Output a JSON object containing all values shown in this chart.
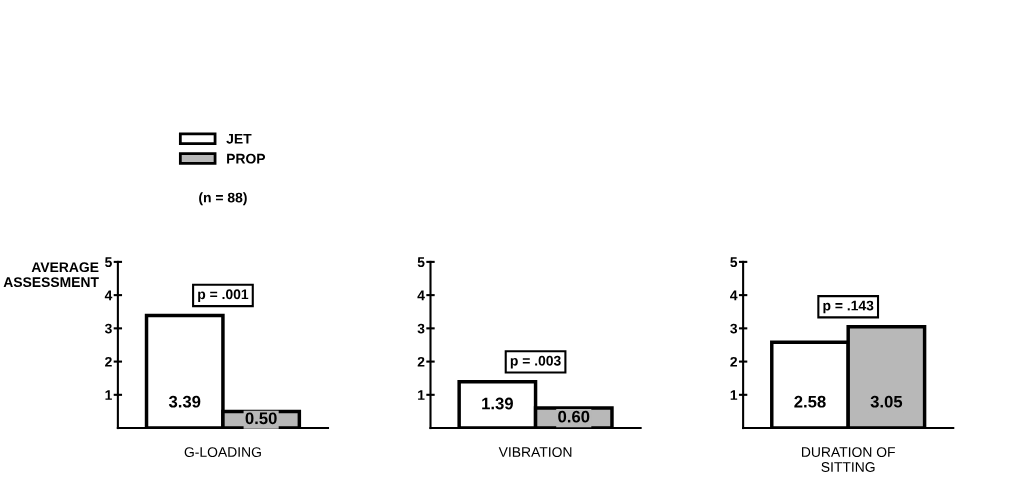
{
  "chart_data": [
    {
      "type": "bar",
      "categories": [
        null
      ],
      "xlabel": "G-LOADING",
      "ylabel": "AVERAGE\nASSESSMENT",
      "subtitle": "(n = 88)",
      "legend": "top",
      "ylim": [
        0,
        5
      ],
      "yticks": [
        1,
        2,
        3,
        4,
        5
      ],
      "grid": false,
      "annotations": [
        "p = .001"
      ],
      "series": [
        {
          "name": "JET",
          "color": "#ffffff",
          "values": [
            3.39
          ],
          "value_labels": [
            "3.39"
          ]
        },
        {
          "name": "PROP",
          "color": "#b8b8b8",
          "values": [
            0.5
          ],
          "value_labels": [
            "0.50"
          ]
        }
      ]
    },
    {
      "type": "bar",
      "categories": [
        null
      ],
      "xlabel": "VIBRATION",
      "ylim": [
        0,
        5
      ],
      "yticks": [
        1,
        2,
        3,
        4,
        5
      ],
      "grid": false,
      "annotations": [
        "p = .003"
      ],
      "series": [
        {
          "color": "#ffffff",
          "values": [
            1.39
          ],
          "value_labels": [
            "1.39"
          ]
        },
        {
          "color": "#b8b8b8",
          "values": [
            0.6
          ],
          "value_labels": [
            "0.60"
          ]
        }
      ]
    },
    {
      "type": "bar",
      "categories": [
        null
      ],
      "xlabel": "DURATION OF\nSITTING",
      "ylim": [
        0,
        5
      ],
      "yticks": [
        1,
        2,
        3,
        4,
        5
      ],
      "grid": false,
      "annotations": [
        "p = .143"
      ],
      "series": [
        {
          "color": "#ffffff",
          "values": [
            2.58
          ],
          "value_labels": [
            "2.58"
          ]
        },
        {
          "color": "#b8b8b8",
          "values": [
            3.05
          ],
          "value_labels": [
            "3.05"
          ]
        }
      ]
    }
  ]
}
